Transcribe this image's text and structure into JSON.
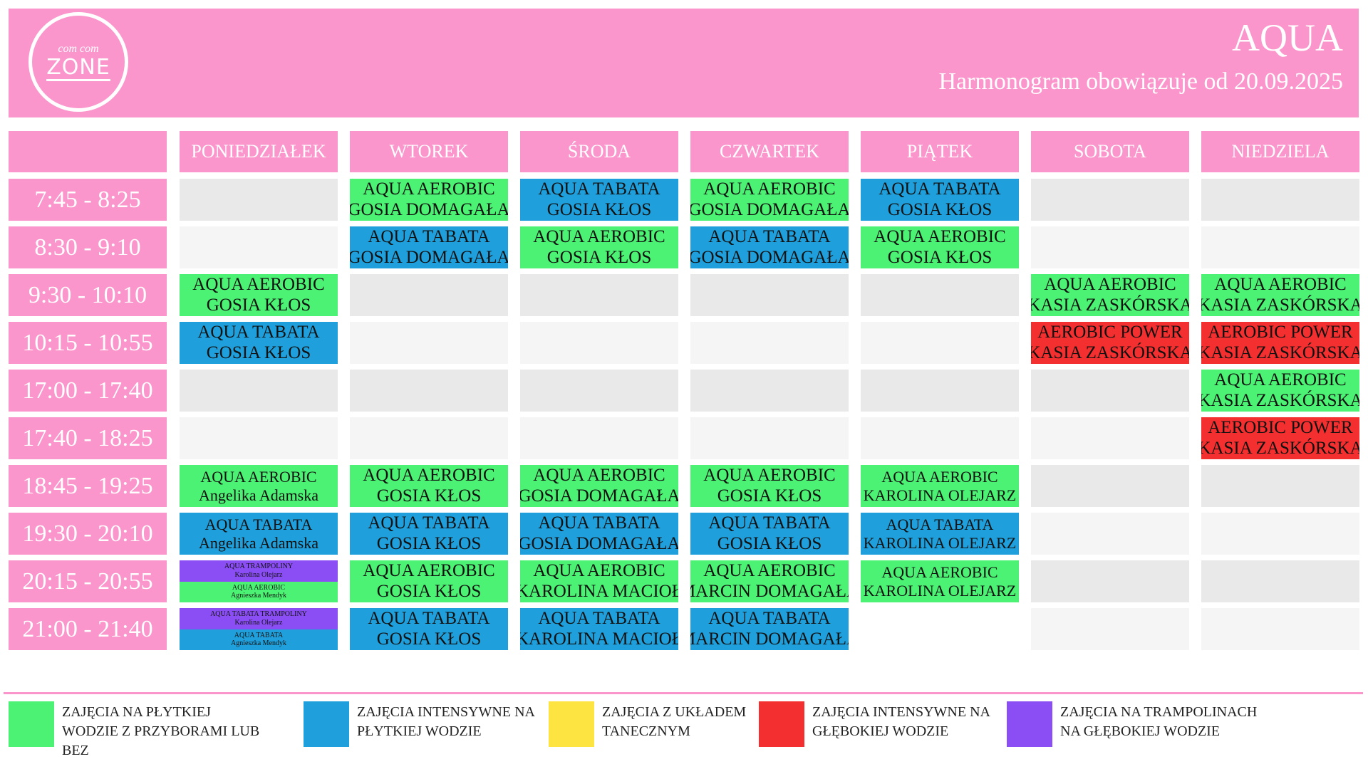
{
  "header": {
    "logo": {
      "top": "com com",
      "main": "ZONE"
    },
    "title": "AQUA",
    "subtitle": "Harmonogram obowiązuje od 20.09.2025"
  },
  "schedule": {
    "days": [
      "PONIEDZIAŁEK",
      "WTOREK",
      "ŚRODA",
      "CZWARTEK",
      "PIĄTEK",
      "SOBOTA",
      "NIEDZIELA"
    ],
    "rows": [
      {
        "time": "7:45 - 8:25",
        "cells": [
          [],
          [
            {
              "name": "AQUA AEROBIC",
              "instructor": "GOSIA DOMAGAŁA",
              "color": "#4cf273"
            }
          ],
          [
            {
              "name": "AQUA TABATA",
              "instructor": "GOSIA KŁOS",
              "color": "#1fa0dc"
            }
          ],
          [
            {
              "name": "AQUA AEROBIC",
              "instructor": "GOSIA DOMAGAŁA",
              "color": "#4cf273"
            }
          ],
          [
            {
              "name": "AQUA TABATA",
              "instructor": "GOSIA KŁOS",
              "color": "#1fa0dc"
            }
          ],
          [],
          []
        ]
      },
      {
        "time": "8:30 - 9:10",
        "cells": [
          [],
          [
            {
              "name": "AQUA TABATA",
              "instructor": "GOSIA DOMAGAŁA",
              "color": "#1fa0dc"
            }
          ],
          [
            {
              "name": "AQUA AEROBIC",
              "instructor": "GOSIA KŁOS",
              "color": "#4cf273"
            }
          ],
          [
            {
              "name": "AQUA TABATA",
              "instructor": "GOSIA DOMAGAŁA",
              "color": "#1fa0dc"
            }
          ],
          [
            {
              "name": "AQUA AEROBIC",
              "instructor": "GOSIA KŁOS",
              "color": "#4cf273"
            }
          ],
          [],
          []
        ]
      },
      {
        "time": "9:30 - 10:10",
        "cells": [
          [
            {
              "name": "AQUA AEROBIC",
              "instructor": "GOSIA KŁOS",
              "color": "#4cf273"
            }
          ],
          [],
          [],
          [],
          [],
          [
            {
              "name": "AQUA AEROBIC",
              "instructor": "KASIA ZASKÓRSKA",
              "color": "#4cf273"
            }
          ],
          [
            {
              "name": "AQUA AEROBIC",
              "instructor": "KASIA ZASKÓRSKA",
              "color": "#4cf273"
            }
          ]
        ]
      },
      {
        "time": "10:15 - 10:55",
        "cells": [
          [
            {
              "name": "AQUA TABATA",
              "instructor": "GOSIA KŁOS",
              "color": "#1fa0dc"
            }
          ],
          [],
          [],
          [],
          [],
          [
            {
              "name": "AEROBIC POWER",
              "instructor": "KASIA ZASKÓRSKA",
              "color": "#f42f2f"
            }
          ],
          [
            {
              "name": "AEROBIC POWER",
              "instructor": "KASIA ZASKÓRSKA",
              "color": "#f42f2f"
            }
          ]
        ]
      },
      {
        "time": "17:00 - 17:40",
        "cells": [
          [],
          [],
          [],
          [],
          [],
          [],
          [
            {
              "name": "AQUA AEROBIC",
              "instructor": "KASIA ZASKÓRSKA",
              "color": "#4cf273"
            }
          ]
        ]
      },
      {
        "time": "17:40 - 18:25",
        "cells": [
          [],
          [],
          [],
          [],
          [],
          [],
          [
            {
              "name": "AEROBIC POWER",
              "instructor": "KASIA ZASKÓRSKA",
              "color": "#f42f2f"
            }
          ]
        ]
      },
      {
        "time": "18:45 - 19:25",
        "cells": [
          [
            {
              "name": "AQUA AEROBIC",
              "instructor": "Angelika Adamska",
              "color": "#4cf273"
            }
          ],
          [
            {
              "name": "AQUA AEROBIC",
              "instructor": "GOSIA KŁOS",
              "color": "#4cf273"
            }
          ],
          [
            {
              "name": "AQUA AEROBIC",
              "instructor": "GOSIA DOMAGAŁA",
              "color": "#4cf273"
            }
          ],
          [
            {
              "name": "AQUA AEROBIC",
              "instructor": "GOSIA KŁOS",
              "color": "#4cf273"
            }
          ],
          [
            {
              "name": "AQUA AEROBIC",
              "instructor": "KAROLINA OLEJARZ",
              "color": "#4cf273"
            }
          ],
          [],
          []
        ]
      },
      {
        "time": "19:30 - 20:10",
        "cells": [
          [
            {
              "name": "AQUA TABATA",
              "instructor": "Angelika Adamska",
              "color": "#1fa0dc"
            }
          ],
          [
            {
              "name": "AQUA TABATA",
              "instructor": "GOSIA KŁOS",
              "color": "#1fa0dc"
            }
          ],
          [
            {
              "name": "AQUA TABATA",
              "instructor": "GOSIA DOMAGAŁA",
              "color": "#1fa0dc"
            }
          ],
          [
            {
              "name": "AQUA TABATA",
              "instructor": "GOSIA KŁOS",
              "color": "#1fa0dc"
            }
          ],
          [
            {
              "name": "AQUA TABATA",
              "instructor": "KAROLINA OLEJARZ",
              "color": "#1fa0dc"
            }
          ],
          [],
          []
        ]
      },
      {
        "time": "20:15 - 20:55",
        "cells": [
          [
            {
              "name": "AQUA TRAMPOLINY",
              "instructor": "Karolina Olejarz",
              "color": "#8b4ef5"
            },
            {
              "name": "AQUA AEROBIC",
              "instructor": "Agnieszka Mendyk",
              "color": "#4cf273"
            }
          ],
          [
            {
              "name": "AQUA AEROBIC",
              "instructor": "GOSIA KŁOS",
              "color": "#4cf273"
            }
          ],
          [
            {
              "name": "AQUA AEROBIC",
              "instructor": "KAROLINA MACIOŁ",
              "color": "#4cf273"
            }
          ],
          [
            {
              "name": "AQUA AEROBIC",
              "instructor": "MARCIN DOMAGAŁA",
              "color": "#4cf273"
            }
          ],
          [
            {
              "name": "AQUA AEROBIC",
              "instructor": "KAROLINA OLEJARZ",
              "color": "#4cf273"
            }
          ],
          [],
          []
        ]
      },
      {
        "time": "21:00 - 21:40",
        "cells": [
          [
            {
              "name": "AQUA TABATA TRAMPOLINY",
              "instructor": "Karolina Olejarz",
              "color": "#8b4ef5"
            },
            {
              "name": "AQUA TABATA",
              "instructor": "Agnieszka Mendyk",
              "color": "#1fa0dc"
            }
          ],
          [
            {
              "name": "AQUA TABATA",
              "instructor": "GOSIA KŁOS",
              "color": "#1fa0dc"
            }
          ],
          [
            {
              "name": "AQUA TABATA",
              "instructor": "KAROLINA MACIOŁ",
              "color": "#1fa0dc"
            }
          ],
          [
            {
              "name": "AQUA TABATA",
              "instructor": "MARCIN DOMAGAŁA",
              "color": "#1fa0dc"
            }
          ],
          null,
          [],
          []
        ]
      }
    ]
  },
  "legend": [
    {
      "color": "#4cf273",
      "label": "ZAJĘCIA NA PŁYTKIEJ WODZIE Z PRZYBORAMI LUB BEZ"
    },
    {
      "color": "#1fa0dc",
      "label": "ZAJĘCIA INTENSYWNE NA PŁYTKIEJ WODZIE"
    },
    {
      "color": "#fde441",
      "label": "ZAJĘCIA Z UKŁADEM TANECZNYM"
    },
    {
      "color": "#f42f2f",
      "label": "ZAJĘCIA INTENSYWNE NA GŁĘBOKIEJ WODZIE"
    },
    {
      "color": "#8b4ef5",
      "label": "ZAJĘCIA NA TRAMPOLINACH NA GŁĘBOKIEJ WODZIE"
    }
  ]
}
